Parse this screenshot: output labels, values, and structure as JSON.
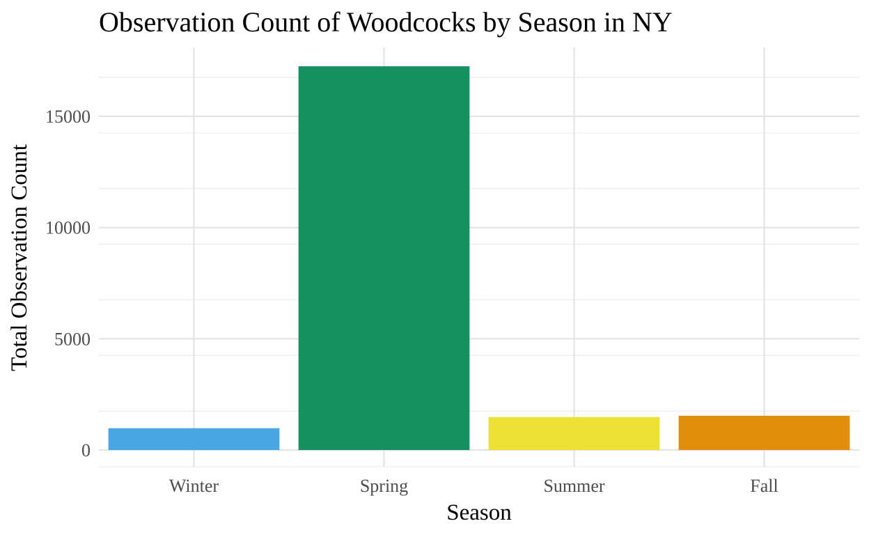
{
  "chart_data": {
    "type": "bar",
    "title": "Observation Count of Woodcocks by Season in NY",
    "xlabel": "Season",
    "ylabel": "Total Observation Count",
    "categories": [
      "Winter",
      "Spring",
      "Summer",
      "Fall"
    ],
    "values": [
      980,
      17250,
      1480,
      1540
    ],
    "colors": [
      "#48A6E3",
      "#168F61",
      "#EDE035",
      "#E08E0B"
    ],
    "ylim": [
      -750,
      18000
    ],
    "yticks": [
      0,
      5000,
      10000,
      15000
    ],
    "ytick_labels": [
      "0",
      "5000",
      "10000",
      "15000"
    ],
    "grid": true,
    "legend": "none"
  }
}
